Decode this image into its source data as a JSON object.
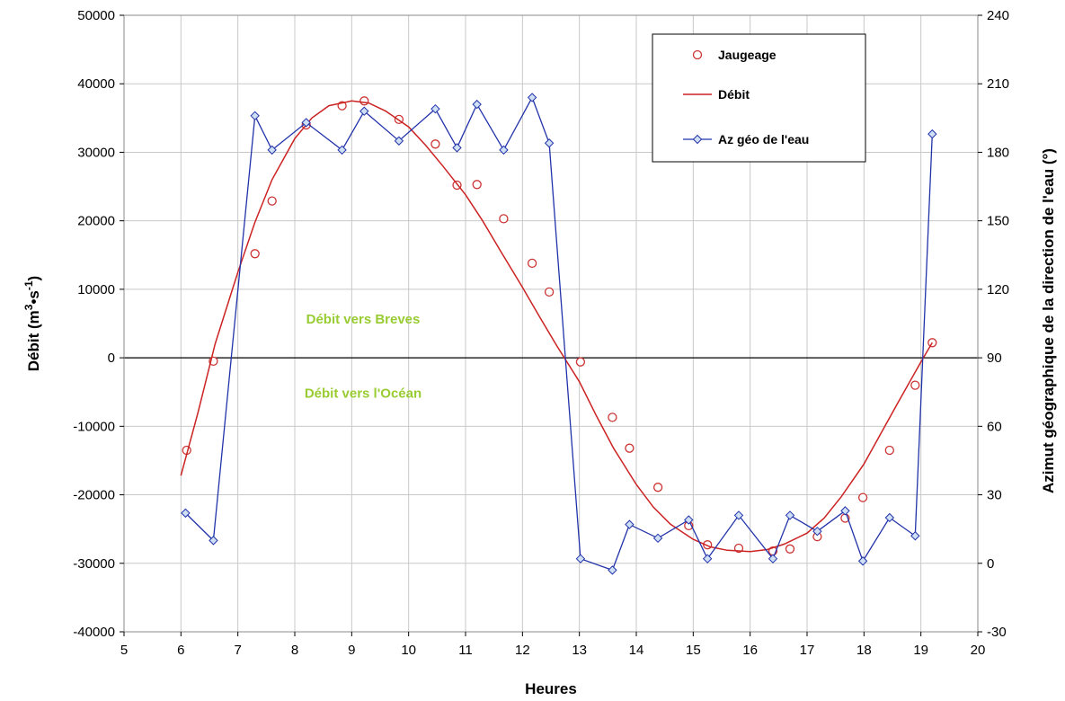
{
  "chart_data": {
    "type": "line",
    "xlabel": "Heures",
    "ylabel": "Débit (m³•s⁻¹)",
    "ylabel_parts": {
      "pre": "Débit (m",
      "sup1": "3",
      "mid": "•s",
      "sup2": "-1",
      "post": ")"
    },
    "y2label": "Azimut géographique de la direction de l'eau  (°)",
    "xlim": [
      5,
      20
    ],
    "ylim": [
      -40000,
      50000
    ],
    "y2lim": [
      -30,
      240
    ],
    "x_ticks": [
      "5",
      "6",
      "7",
      "8",
      "9",
      "10",
      "11",
      "12",
      "13",
      "14",
      "15",
      "16",
      "17",
      "18",
      "19",
      "20"
    ],
    "y_ticks": [
      "-40000",
      "-30000",
      "-20000",
      "-10000",
      "0",
      "10000",
      "20000",
      "30000",
      "40000",
      "50000"
    ],
    "y2_ticks": [
      "-30",
      "0",
      "30",
      "60",
      "90",
      "120",
      "150",
      "180",
      "210",
      "240"
    ],
    "grid": true,
    "legend_position": "top-right",
    "annotations": [
      {
        "text": "Débit vers Breves",
        "x": 9.2,
        "y": 5000,
        "color": "#99cc33"
      },
      {
        "text": "Débit vers l'Océan",
        "x": 9.2,
        "y": -5800,
        "color": "#99cc33"
      }
    ],
    "series": [
      {
        "name": "Jaugeage",
        "kind": "markers",
        "axis": "left",
        "color": "#cc3333",
        "x": [
          6.1,
          6.57,
          7.3,
          7.6,
          8.2,
          8.83,
          9.22,
          9.83,
          10.47,
          10.85,
          11.2,
          11.67,
          12.17,
          12.47,
          13.02,
          13.58,
          13.88,
          14.38,
          14.92,
          15.25,
          15.8,
          16.4,
          16.7,
          17.18,
          17.67,
          17.98,
          18.45,
          18.9,
          19.2
        ],
        "y": [
          -13500,
          -500,
          15200,
          22900,
          34000,
          36800,
          37500,
          34800,
          31200,
          25200,
          25300,
          20300,
          13800,
          9600,
          -600,
          -8700,
          -13200,
          -18900,
          -24500,
          -27300,
          -27800,
          -28200,
          -27900,
          -26100,
          -23400,
          -20400,
          -13500,
          -4000,
          2200
        ]
      },
      {
        "name": "Débit",
        "kind": "line",
        "axis": "left",
        "color": "#cc2222",
        "x": [
          6.0,
          6.3,
          6.6,
          7.0,
          7.3,
          7.6,
          8.0,
          8.3,
          8.6,
          9.0,
          9.3,
          9.6,
          10.0,
          10.3,
          10.6,
          11.0,
          11.3,
          11.6,
          12.0,
          12.3,
          12.6,
          13.0,
          13.3,
          13.6,
          14.0,
          14.3,
          14.6,
          15.0,
          15.3,
          15.6,
          16.0,
          16.3,
          16.6,
          17.0,
          17.3,
          17.6,
          18.0,
          18.3,
          18.6,
          19.0,
          19.2
        ],
        "y": [
          -17200,
          -8000,
          2000,
          12500,
          19800,
          26000,
          32000,
          35000,
          36800,
          37500,
          37200,
          36000,
          33700,
          31000,
          28000,
          23800,
          20000,
          15800,
          10300,
          6000,
          1800,
          -3500,
          -8500,
          -13200,
          -18500,
          -21800,
          -24300,
          -26500,
          -27600,
          -28100,
          -28300,
          -28000,
          -27200,
          -25600,
          -23400,
          -20300,
          -15500,
          -11000,
          -6500,
          -600,
          2200
        ]
      },
      {
        "name": "Az géo de l'eau",
        "kind": "line-markers",
        "axis": "right",
        "color": "#2233aa",
        "marker_fill": "#cfe0f5",
        "x": [
          6.08,
          6.57,
          7.3,
          7.6,
          8.2,
          8.83,
          9.22,
          9.83,
          10.47,
          10.85,
          11.2,
          11.67,
          12.17,
          12.47,
          13.02,
          13.58,
          13.88,
          14.38,
          14.92,
          15.25,
          15.8,
          16.4,
          16.7,
          17.18,
          17.67,
          17.98,
          18.45,
          18.9,
          19.2
        ],
        "y": [
          22,
          10,
          196,
          181,
          193,
          181,
          198,
          185,
          199,
          182,
          201,
          181,
          204,
          184,
          2,
          -3,
          17,
          11,
          19,
          2,
          21,
          2,
          21,
          14,
          23,
          1,
          20,
          12,
          188
        ]
      }
    ]
  }
}
